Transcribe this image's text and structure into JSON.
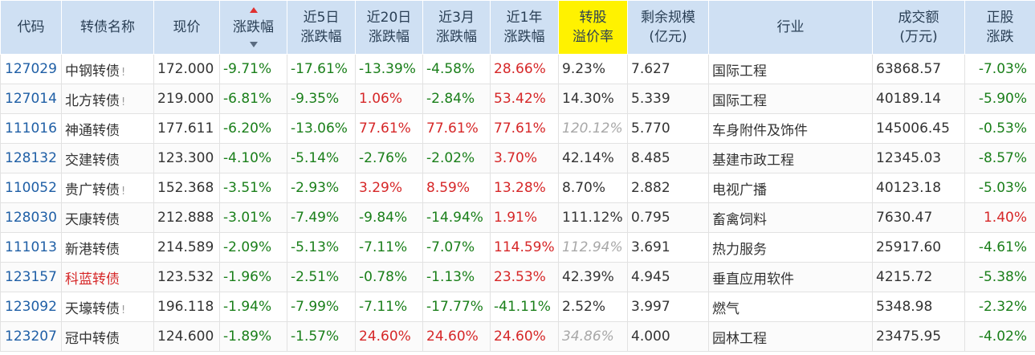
{
  "headers": [
    {
      "l1": "代码",
      "l2": ""
    },
    {
      "l1": "转债名称",
      "l2": ""
    },
    {
      "l1": "现价",
      "l2": ""
    },
    {
      "l1": "涨跌幅",
      "l2": ""
    },
    {
      "l1": "近5日",
      "l2": "涨跌幅"
    },
    {
      "l1": "近20日",
      "l2": "涨跌幅"
    },
    {
      "l1": "近3月",
      "l2": "涨跌幅"
    },
    {
      "l1": "近1年",
      "l2": "涨跌幅"
    },
    {
      "l1": "转股",
      "l2": "溢价率"
    },
    {
      "l1": "剩余规模",
      "l2": "(亿元)"
    },
    {
      "l1": "行业",
      "l2": ""
    },
    {
      "l1": "成交额",
      "l2": "(万元)"
    },
    {
      "l1": "正股",
      "l2": "涨跌"
    }
  ],
  "rows": [
    {
      "code": "127029",
      "name": "中钢转债",
      "flag": "!",
      "price": "172.000",
      "chg": "-9.71%",
      "d5": "-17.61%",
      "d20": "-13.39%",
      "m3": "-4.58%",
      "y1": "28.66%",
      "prem": "9.23%",
      "scale": "7.627",
      "industry": "国际工程",
      "amount": "63868.57",
      "stock": "-7.03%"
    },
    {
      "code": "127014",
      "name": "北方转债",
      "flag": "!",
      "price": "219.000",
      "chg": "-6.81%",
      "d5": "-9.35%",
      "d20": "1.06%",
      "m3": "-2.84%",
      "y1": "53.42%",
      "prem": "14.30%",
      "scale": "5.339",
      "industry": "国际工程",
      "amount": "40189.14",
      "stock": "-5.90%"
    },
    {
      "code": "111016",
      "name": "神通转债",
      "flag": "",
      "price": "177.611",
      "chg": "-6.20%",
      "d5": "-13.06%",
      "d20": "77.61%",
      "m3": "77.61%",
      "y1": "77.61%",
      "prem": "120.12%",
      "scale": "5.770",
      "industry": "车身附件及饰件",
      "amount": "145006.45",
      "stock": "-0.53%"
    },
    {
      "code": "128132",
      "name": "交建转债",
      "flag": "",
      "price": "123.300",
      "chg": "-4.10%",
      "d5": "-5.14%",
      "d20": "-2.76%",
      "m3": "-2.02%",
      "y1": "3.70%",
      "prem": "42.14%",
      "scale": "8.485",
      "industry": "基建市政工程",
      "amount": "12345.03",
      "stock": "-8.57%"
    },
    {
      "code": "110052",
      "name": "贵广转债",
      "flag": "!",
      "price": "152.368",
      "chg": "-3.51%",
      "d5": "-2.93%",
      "d20": "3.29%",
      "m3": "8.59%",
      "y1": "13.28%",
      "prem": "8.70%",
      "scale": "2.882",
      "industry": "电视广播",
      "amount": "40123.18",
      "stock": "-5.03%"
    },
    {
      "code": "128030",
      "name": "天康转债",
      "flag": "",
      "price": "212.888",
      "chg": "-3.01%",
      "d5": "-7.49%",
      "d20": "-9.84%",
      "m3": "-14.94%",
      "y1": "1.91%",
      "prem": "111.12%",
      "scale": "0.795",
      "industry": "畜禽饲料",
      "amount": "7630.47",
      "stock": "1.40%"
    },
    {
      "code": "111013",
      "name": "新港转债",
      "flag": "",
      "price": "214.589",
      "chg": "-2.09%",
      "d5": "-5.13%",
      "d20": "-7.11%",
      "m3": "-7.07%",
      "y1": "114.59%",
      "prem": "112.94%",
      "scale": "3.691",
      "industry": "热力服务",
      "amount": "25917.60",
      "stock": "-4.61%"
    },
    {
      "code": "123157",
      "name": "科蓝转债",
      "flag": "",
      "price": "123.532",
      "chg": "-1.96%",
      "d5": "-2.51%",
      "d20": "-0.78%",
      "m3": "-1.13%",
      "y1": "23.53%",
      "prem": "42.39%",
      "scale": "4.945",
      "industry": "垂直应用软件",
      "amount": "4215.72",
      "stock": "-5.38%"
    },
    {
      "code": "123092",
      "name": "天壕转债",
      "flag": "!",
      "price": "196.118",
      "chg": "-1.94%",
      "d5": "-7.99%",
      "d20": "-7.11%",
      "m3": "-17.77%",
      "y1": "-41.11%",
      "prem": "2.52%",
      "scale": "3.997",
      "industry": "燃气",
      "amount": "5348.98",
      "stock": "-2.32%"
    },
    {
      "code": "123207",
      "name": "冠中转债",
      "flag": "",
      "price": "124.600",
      "chg": "-1.89%",
      "d5": "-1.57%",
      "d20": "24.60%",
      "m3": "24.60%",
      "y1": "24.60%",
      "prem": "34.86%",
      "scale": "4.000",
      "industry": "园林工程",
      "amount": "23475.95",
      "stock": "-4.02%"
    }
  ],
  "styles": {
    "muted_prem_rows": [
      2,
      6,
      9
    ],
    "red_name_rows": [
      7
    ]
  },
  "colors": {
    "header_bg": "#cfe0f3",
    "highlight_header_bg": "#fff200",
    "negative": "#1a7f1a",
    "positive": "#d62728",
    "code_link": "#1f5fa6",
    "sort_up_arrow": "#e03030"
  },
  "sort": {
    "column": "涨跌幅",
    "direction": "ascending-indicator"
  }
}
